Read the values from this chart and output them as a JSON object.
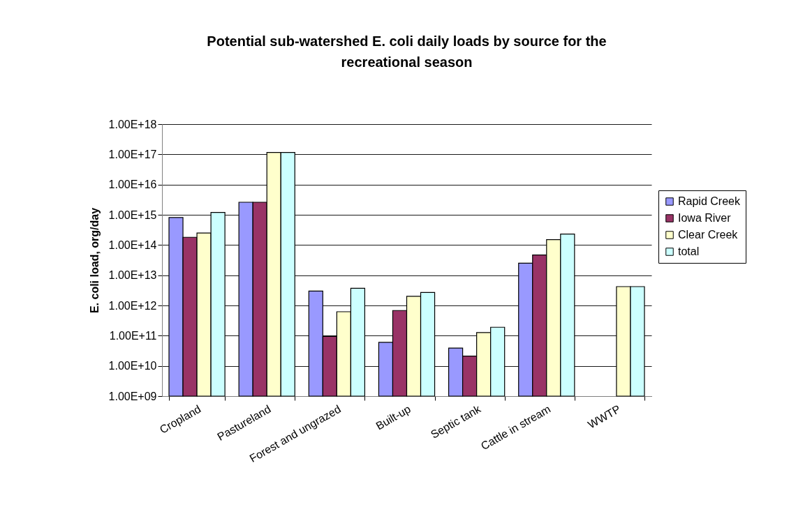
{
  "chart_data": {
    "type": "bar",
    "title": "Potential sub-watershed E. coli daily loads by source for the recreational season",
    "ylabel": "E. coli load, org/day",
    "categories": [
      "Cropland",
      "Pastureland",
      "Forest and ungrazed",
      "Built-up",
      "Septic tank",
      "Cattle in stream",
      "WWTP"
    ],
    "series": [
      {
        "name": "Rapid Creek",
        "color": "#9999ff",
        "values": [
          810000000000000.0,
          2600000000000000.0,
          3000000000000.0,
          60000000000.0,
          39000000000.0,
          25000000000000.0,
          null
        ]
      },
      {
        "name": "Iowa River",
        "color": "#993366",
        "values": [
          180000000000000.0,
          2600000000000000.0,
          94000000000.0,
          680000000000.0,
          21000000000.0,
          47000000000000.0,
          null
        ]
      },
      {
        "name": "Clear Creek",
        "color": "#ffffcc",
        "values": [
          250000000000000.0,
          1.15e+17,
          620000000000.0,
          2000000000000.0,
          127000000000.0,
          150000000000000.0,
          4200000000000.0
        ]
      },
      {
        "name": "total",
        "color": "#ccffff",
        "values": [
          1200000000000000.0,
          1.15e+17,
          3700000000000.0,
          2700000000000.0,
          190000000000.0,
          230000000000000.0,
          4200000000000.0
        ]
      }
    ],
    "log": true,
    "ylim": [
      1000000000.0,
      1e+18
    ],
    "yticks": [
      {
        "value": 1000000000.0,
        "label": "1.00E+09"
      },
      {
        "value": 10000000000.0,
        "label": "1.00E+10"
      },
      {
        "value": 100000000000.0,
        "label": "1.00E+11"
      },
      {
        "value": 1000000000000.0,
        "label": "1.00E+12"
      },
      {
        "value": 10000000000000.0,
        "label": "1.00E+13"
      },
      {
        "value": 100000000000000.0,
        "label": "1.00E+14"
      },
      {
        "value": 1000000000000000.0,
        "label": "1.00E+15"
      },
      {
        "value": 1e+16,
        "label": "1.00E+16"
      },
      {
        "value": 1e+17,
        "label": "1.00E+17"
      },
      {
        "value": 1e+18,
        "label": "1.00E+18"
      }
    ],
    "grid": "y",
    "legend": "right"
  }
}
